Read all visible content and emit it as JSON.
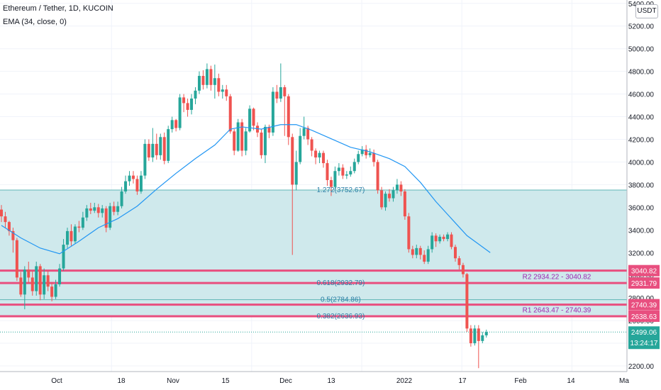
{
  "legend": {
    "title": "Ethereum / Tether, 1D, KUCOIN",
    "ema": "EMA (34, close, 0)"
  },
  "currency_button": "USDT",
  "colors": {
    "up": "#26a69a",
    "down": "#ef5350",
    "ema": "#2196f3",
    "zone_fill": "#cfe9ec",
    "zone_line": "#5fb6b6",
    "level_pink": "#e84f7f",
    "fib_text": "#2a7ea6",
    "pivot_text": "#9c27b0",
    "current_price": "#26a69a"
  },
  "chart_data": {
    "type": "candlestick",
    "y_axis": {
      "range": [
        2150,
        5430
      ],
      "ticks": [
        2200,
        2400,
        2600,
        2800,
        3000,
        3200,
        3400,
        3600,
        3800,
        4000,
        4200,
        4400,
        4600,
        4800,
        5000,
        5200,
        5400
      ],
      "tick_labels": [
        "2200.00",
        "2400.00",
        "2600.00",
        "2800.00",
        "3000.00",
        "3200.00",
        "3400.00",
        "3600.00",
        "3800.00",
        "4000.00",
        "4200.00",
        "4400.00",
        "4600.00",
        "4800.00",
        "5000.00",
        "5200.00",
        "5400.00"
      ]
    },
    "x_axis": {
      "labels": [
        "Oct",
        "18",
        "Nov",
        "15",
        "Dec",
        "13",
        "2022",
        "17",
        "Feb",
        "14",
        "Ma"
      ],
      "label_positions": [
        11,
        25,
        36,
        46,
        57,
        67,
        81,
        92,
        102,
        113,
        123
      ]
    },
    "candles": [
      [
        3580,
        3520,
        3620,
        3470
      ],
      [
        3520,
        3470,
        3560,
        3420
      ],
      [
        3470,
        3390,
        3480,
        3350
      ],
      [
        3390,
        3310,
        3420,
        3200
      ],
      [
        3310,
        2980,
        3330,
        2950
      ],
      [
        2980,
        2830,
        3030,
        2810
      ],
      [
        2830,
        3050,
        3080,
        2700
      ],
      [
        3050,
        2980,
        3120,
        2930
      ],
      [
        2980,
        2860,
        3040,
        2820
      ],
      [
        2860,
        3080,
        3120,
        2820
      ],
      [
        3080,
        2830,
        3100,
        2780
      ],
      [
        2830,
        3000,
        3060,
        2790
      ],
      [
        3000,
        2900,
        3040,
        2860
      ],
      [
        2900,
        2810,
        2940,
        2770
      ],
      [
        2810,
        2920,
        2960,
        2790
      ],
      [
        2920,
        3060,
        3100,
        2900
      ],
      [
        3060,
        3270,
        3320,
        3040
      ],
      [
        3270,
        3390,
        3420,
        3240
      ],
      [
        3390,
        3300,
        3450,
        3260
      ],
      [
        3300,
        3430,
        3450,
        3280
      ],
      [
        3430,
        3420,
        3480,
        3380
      ],
      [
        3420,
        3510,
        3560,
        3400
      ],
      [
        3510,
        3590,
        3620,
        3480
      ],
      [
        3590,
        3570,
        3640,
        3540
      ],
      [
        3570,
        3600,
        3640,
        3550
      ],
      [
        3600,
        3550,
        3630,
        3510
      ],
      [
        3550,
        3590,
        3620,
        3510
      ],
      [
        3590,
        3420,
        3610,
        3380
      ],
      [
        3420,
        3610,
        3640,
        3400
      ],
      [
        3610,
        3560,
        3650,
        3530
      ],
      [
        3560,
        3610,
        3650,
        3530
      ],
      [
        3610,
        3740,
        3780,
        3590
      ],
      [
        3740,
        3830,
        3880,
        3720
      ],
      [
        3830,
        3880,
        3920,
        3790
      ],
      [
        3880,
        3850,
        3920,
        3810
      ],
      [
        3850,
        3740,
        3880,
        3710
      ],
      [
        3740,
        3880,
        3920,
        3720
      ],
      [
        3880,
        4160,
        4200,
        3850
      ],
      [
        4160,
        4040,
        4200,
        4010
      ],
      [
        4040,
        4160,
        4300,
        4000
      ],
      [
        4160,
        4060,
        4250,
        4020
      ],
      [
        4060,
        4220,
        4250,
        4020
      ],
      [
        4220,
        4010,
        4260,
        3980
      ],
      [
        4010,
        4290,
        4320,
        3990
      ],
      [
        4290,
        4370,
        4400,
        4260
      ],
      [
        4370,
        4300,
        4380,
        4270
      ],
      [
        4300,
        4570,
        4600,
        4280
      ],
      [
        4570,
        4520,
        4600,
        4440
      ],
      [
        4520,
        4460,
        4560,
        4400
      ],
      [
        4460,
        4560,
        4600,
        4420
      ],
      [
        4560,
        4630,
        4660,
        4510
      ],
      [
        4630,
        4760,
        4800,
        4600
      ],
      [
        4760,
        4680,
        4810,
        4640
      ],
      [
        4680,
        4820,
        4870,
        4650
      ],
      [
        4820,
        4680,
        4850,
        4630
      ],
      [
        4680,
        4740,
        4860,
        4560
      ],
      [
        4740,
        4620,
        4780,
        4580
      ],
      [
        4620,
        4640,
        4680,
        4560
      ],
      [
        4640,
        4580,
        4680,
        4540
      ],
      [
        4580,
        4270,
        4600,
        4250
      ],
      [
        4270,
        4100,
        4290,
        4060
      ],
      [
        4100,
        4350,
        4380,
        4090
      ],
      [
        4350,
        4100,
        4380,
        4050
      ],
      [
        4100,
        4270,
        4300,
        4060
      ],
      [
        4270,
        4470,
        4500,
        4260
      ],
      [
        4470,
        4320,
        4480,
        4280
      ],
      [
        4320,
        4260,
        4350,
        4220
      ],
      [
        4260,
        4060,
        4290,
        4030
      ],
      [
        4060,
        4310,
        4330,
        3990
      ],
      [
        4310,
        4260,
        4330,
        4210
      ],
      [
        4260,
        4620,
        4660,
        4230
      ],
      [
        4620,
        4560,
        4680,
        4520
      ],
      [
        4560,
        4660,
        4870,
        4530
      ],
      [
        4660,
        4580,
        4680,
        4230
      ],
      [
        4580,
        4220,
        4600,
        4150
      ],
      [
        4220,
        3800,
        4250,
        3180
      ],
      [
        3800,
        4000,
        4100,
        3750
      ],
      [
        4000,
        4230,
        4300,
        3980
      ],
      [
        4230,
        4300,
        4400,
        4200
      ],
      [
        4300,
        4200,
        4320,
        4150
      ],
      [
        4200,
        4100,
        4220,
        4050
      ],
      [
        4100,
        4040,
        4120,
        3980
      ],
      [
        4040,
        4080,
        4100,
        3990
      ],
      [
        4080,
        3990,
        4100,
        3950
      ],
      [
        3990,
        3840,
        4020,
        3790
      ],
      [
        3840,
        3780,
        3870,
        3700
      ],
      [
        3780,
        3920,
        3960,
        3760
      ],
      [
        3920,
        3950,
        3990,
        3880
      ],
      [
        3950,
        3880,
        3980,
        3850
      ],
      [
        3880,
        3890,
        3920,
        3850
      ],
      [
        3890,
        3920,
        3960,
        3870
      ],
      [
        3920,
        4000,
        4030,
        3900
      ],
      [
        4000,
        4070,
        4100,
        3980
      ],
      [
        4070,
        4110,
        4140,
        4050
      ],
      [
        4110,
        4060,
        4150,
        4030
      ],
      [
        4060,
        4080,
        4120,
        4040
      ],
      [
        4080,
        4000,
        4110,
        3960
      ],
      [
        4000,
        3750,
        4020,
        3720
      ],
      [
        3750,
        3600,
        3780,
        3580
      ],
      [
        3600,
        3720,
        3740,
        3570
      ],
      [
        3720,
        3680,
        3760,
        3650
      ],
      [
        3680,
        3750,
        3780,
        3650
      ],
      [
        3750,
        3800,
        3850,
        3720
      ],
      [
        3800,
        3740,
        3830,
        3700
      ],
      [
        3740,
        3520,
        3760,
        3490
      ],
      [
        3520,
        3230,
        3550,
        3200
      ],
      [
        3230,
        3180,
        3260,
        3150
      ],
      [
        3180,
        3240,
        3270,
        3150
      ],
      [
        3240,
        3180,
        3260,
        3140
      ],
      [
        3180,
        3120,
        3220,
        3100
      ],
      [
        3120,
        3230,
        3260,
        3100
      ],
      [
        3230,
        3350,
        3380,
        3200
      ],
      [
        3350,
        3300,
        3370,
        3250
      ],
      [
        3300,
        3340,
        3360,
        3280
      ],
      [
        3340,
        3320,
        3360,
        3300
      ],
      [
        3320,
        3360,
        3380,
        3300
      ],
      [
        3360,
        3250,
        3380,
        3230
      ],
      [
        3250,
        3150,
        3270,
        3120
      ],
      [
        3150,
        3090,
        3170,
        3050
      ],
      [
        3090,
        3010,
        3110,
        2980
      ],
      [
        3010,
        2530,
        3020,
        2500
      ],
      [
        2530,
        2400,
        2560,
        2370
      ],
      [
        2400,
        2530,
        2560,
        2380
      ],
      [
        2530,
        2420,
        2560,
        2180
      ],
      [
        2420,
        2470,
        2500,
        2400
      ],
      [
        2470,
        2499,
        2520,
        2450
      ]
    ],
    "ema": {
      "name": "EMA (34, close, 0)",
      "values": [
        [
          0,
          3440
        ],
        [
          5,
          3330
        ],
        [
          10,
          3240
        ],
        [
          15,
          3190
        ],
        [
          20,
          3300
        ],
        [
          25,
          3420
        ],
        [
          30,
          3500
        ],
        [
          35,
          3610
        ],
        [
          40,
          3760
        ],
        [
          45,
          3900
        ],
        [
          50,
          4030
        ],
        [
          55,
          4150
        ],
        [
          59,
          4290
        ],
        [
          62,
          4310
        ],
        [
          67,
          4290
        ],
        [
          72,
          4330
        ],
        [
          76,
          4330
        ],
        [
          80,
          4280
        ],
        [
          86,
          4190
        ],
        [
          90,
          4130
        ],
        [
          95,
          4090
        ],
        [
          100,
          4030
        ],
        [
          104,
          3960
        ],
        [
          108,
          3820
        ],
        [
          112,
          3650
        ],
        [
          116,
          3500
        ],
        [
          120,
          3350
        ],
        [
          124,
          3250
        ],
        [
          126,
          3200
        ]
      ]
    },
    "zone": {
      "top": 3752.67,
      "bottom": 2636.93
    },
    "levels": [
      {
        "price": 3040.82,
        "label": "3040.82"
      },
      {
        "price": 2931.79,
        "label": "2931.79"
      },
      {
        "price": 2740.39,
        "label": "2740.39"
      },
      {
        "price": 2638.63,
        "label": "2638.63"
      }
    ],
    "fib_lines": [
      2784.86
    ],
    "fib_labels": [
      {
        "text": "1.272(3752.67)",
        "price": 3752.67,
        "index": 86
      },
      {
        "text": "0.618(2932.79)",
        "price": 2932.79,
        "index": 86
      },
      {
        "text": "0.5(2784.86)",
        "price": 2784.86,
        "index": 86
      },
      {
        "text": "0.382(2636.93)",
        "price": 2636.93,
        "index": 86
      }
    ],
    "pivot_labels": [
      {
        "text": "R2 2934.22 - 3040.82",
        "price": 2986
      },
      {
        "text": "R1 2643.47 - 2740.39",
        "price": 2691
      }
    ],
    "current_price": {
      "price": 2499.06,
      "label": "2499.06",
      "countdown": "13:24:17"
    }
  }
}
